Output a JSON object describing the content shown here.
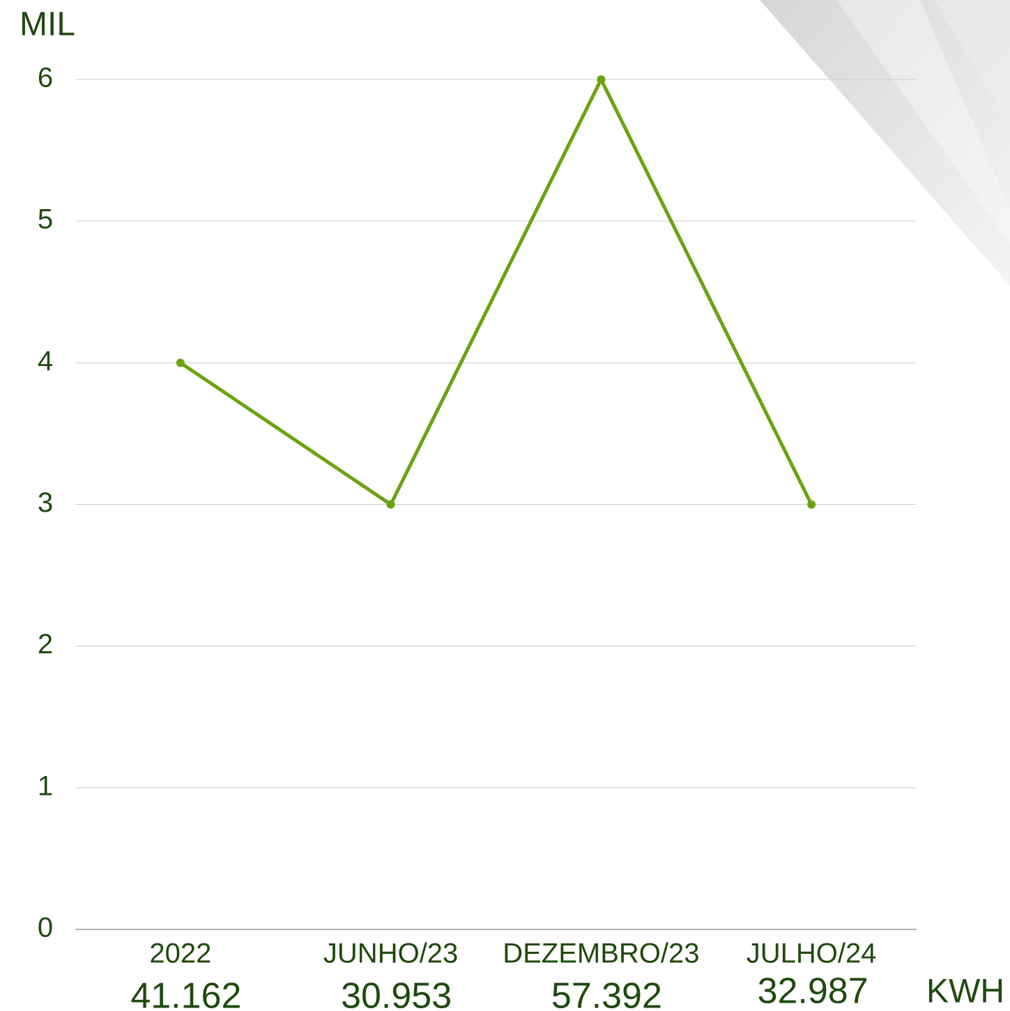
{
  "chart_data": {
    "type": "line",
    "y_axis_label": "MIL",
    "categories": [
      "2022",
      "JUNHO/23",
      "DEZEMBRO/23",
      "JULHO/24"
    ],
    "values": [
      4,
      3,
      6,
      3
    ],
    "color": "#6aa312",
    "ylim": [
      0,
      6
    ],
    "yticks": [
      0,
      1,
      2,
      3,
      4,
      5,
      6
    ],
    "grid": true,
    "category_totals": [
      "41.162",
      "30.953",
      "57.392",
      "32.987"
    ],
    "totals_unit": "KWH"
  }
}
